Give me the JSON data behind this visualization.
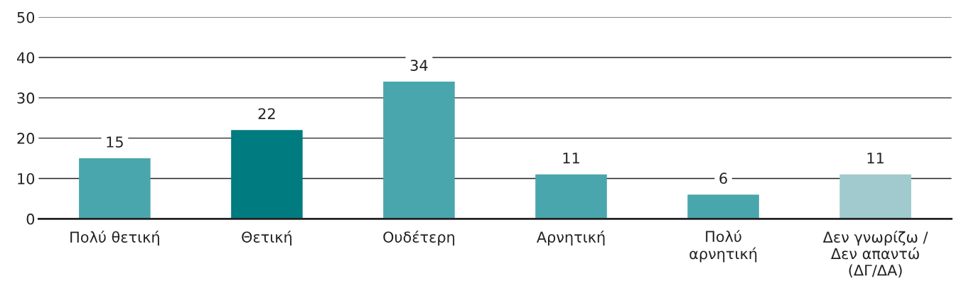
{
  "chart_data": {
    "type": "bar",
    "categories": [
      "Πολύ θετική",
      "Θετική",
      "Ουδέτερη",
      "Αρνητική",
      "Πολύ\nαρνητική",
      "Δεν γνωρίζω /\nΔεν απαντώ\n(ΔΓ/ΔΑ)"
    ],
    "values": [
      15,
      22,
      34,
      11,
      6,
      11
    ],
    "colors": [
      "#4aa6ad",
      "#007b7f",
      "#4aa6ad",
      "#4aa6ad",
      "#4aa6ad",
      "#a0cacd"
    ],
    "ylim": [
      0,
      50
    ],
    "yticks": [
      0,
      10,
      20,
      30,
      40,
      50
    ],
    "grid": "y",
    "data_labels": true
  }
}
